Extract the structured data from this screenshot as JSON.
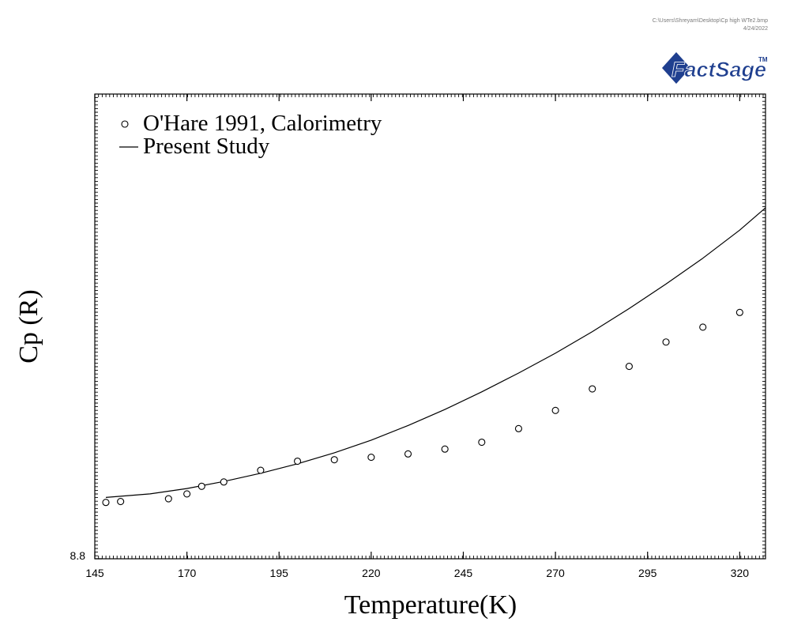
{
  "header": {
    "file_path": "C:\\Users\\Shreyam\\Desktop\\Cp high WTe2.bmp",
    "date": "4/24/2022",
    "logo_text": "FactSage",
    "logo_tm": "TM"
  },
  "chart_data": {
    "type": "scatter",
    "title": "",
    "xlabel": "Temperature(K)",
    "ylabel": "Cp (R)",
    "xlim": [
      145,
      327
    ],
    "ylim": [
      8.8,
      9.05
    ],
    "x_ticks": [
      145,
      170,
      195,
      220,
      245,
      270,
      295,
      320
    ],
    "y_ticks": [
      8.8
    ],
    "legend_position": "top-left",
    "series": [
      {
        "name": "O'Hare 1991, Calorimetry",
        "kind": "markers",
        "marker": "open-circle",
        "x": [
          148,
          152,
          165,
          170,
          174,
          180,
          190,
          200,
          210,
          220,
          230,
          240,
          250,
          260,
          270,
          280,
          290,
          300,
          310,
          320
        ],
        "y": [
          8.8303,
          8.8308,
          8.8323,
          8.8349,
          8.839,
          8.8413,
          8.8476,
          8.8525,
          8.8533,
          8.8546,
          8.8564,
          8.859,
          8.8627,
          8.87,
          8.8798,
          8.8914,
          8.9035,
          8.9166,
          8.9246,
          8.9325
        ]
      },
      {
        "name": "Present Study",
        "kind": "line",
        "x": [
          148,
          160,
          170,
          180,
          190,
          200,
          210,
          220,
          230,
          240,
          250,
          260,
          270,
          280,
          290,
          300,
          310,
          320,
          327
        ],
        "y": [
          8.833,
          8.8349,
          8.8378,
          8.8416,
          8.846,
          8.8511,
          8.857,
          8.8638,
          8.8717,
          8.8803,
          8.8898,
          8.8999,
          8.9106,
          8.9222,
          8.9346,
          8.9478,
          8.9617,
          8.9768,
          8.9888
        ]
      }
    ]
  }
}
